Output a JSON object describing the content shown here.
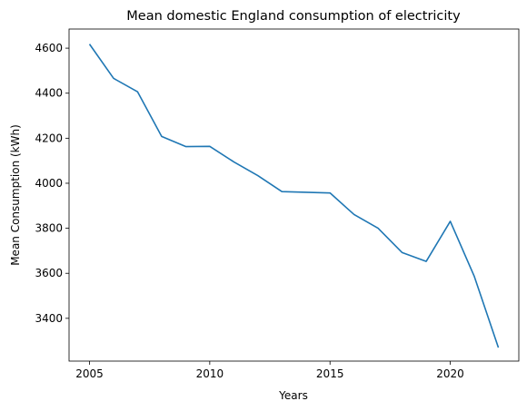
{
  "chart_data": {
    "type": "line",
    "title": "Mean domestic England consumption of electricity",
    "xlabel": "Years",
    "ylabel": "Mean Consumption (kWh)",
    "xlim": [
      2004.15,
      2022.85
    ],
    "ylim": [
      3210,
      4685
    ],
    "xticks": [
      2005,
      2010,
      2015,
      2020
    ],
    "yticks": [
      3400,
      3600,
      3800,
      4000,
      4200,
      4400,
      4600
    ],
    "grid": false,
    "line_color": "#1f77b4",
    "series": [
      {
        "x": [
          2005,
          2006,
          2007,
          2008,
          2009,
          2010,
          2011,
          2012,
          2013,
          2014,
          2015,
          2016,
          2017,
          2018,
          2019,
          2020,
          2021,
          2022
        ],
        "values": [
          4618,
          4466,
          4406,
          4208,
          4163,
          4164,
          4095,
          4034,
          3963,
          3960,
          3957,
          3861,
          3800,
          3692,
          3653,
          3831,
          3586,
          3270
        ]
      }
    ]
  }
}
